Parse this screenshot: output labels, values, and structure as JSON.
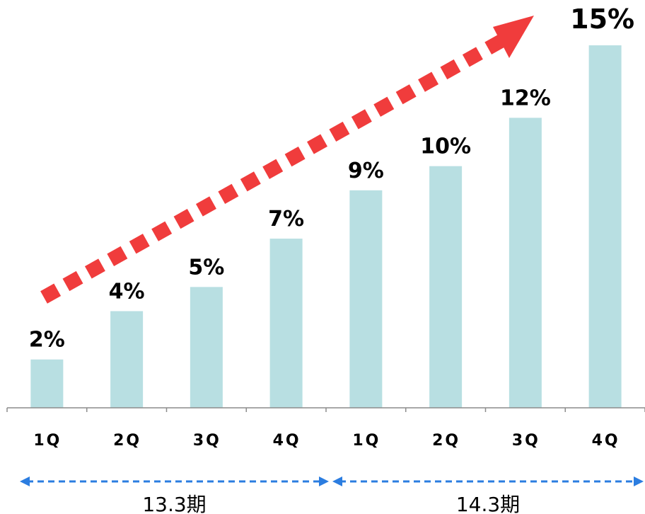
{
  "chart_data": {
    "type": "bar",
    "categories": [
      "1Q",
      "2Q",
      "3Q",
      "4Q",
      "1Q",
      "2Q",
      "3Q",
      "4Q"
    ],
    "values": [
      2,
      4,
      5,
      7,
      9,
      10,
      12,
      15
    ],
    "data_labels": [
      "2%",
      "4%",
      "5%",
      "7%",
      "9%",
      "10%",
      "12%",
      "15%"
    ],
    "ylim": [
      0,
      17.5
    ],
    "groups": [
      {
        "label": "13.3期",
        "categories": [
          0,
          3
        ]
      },
      {
        "label": "14.3期",
        "categories": [
          4,
          7
        ]
      }
    ],
    "bar_color": "#b8dfe2",
    "trend_arrow_color": "#f03c3c",
    "period_line_color": "#2b7de0",
    "grid": false,
    "legend": "none"
  }
}
